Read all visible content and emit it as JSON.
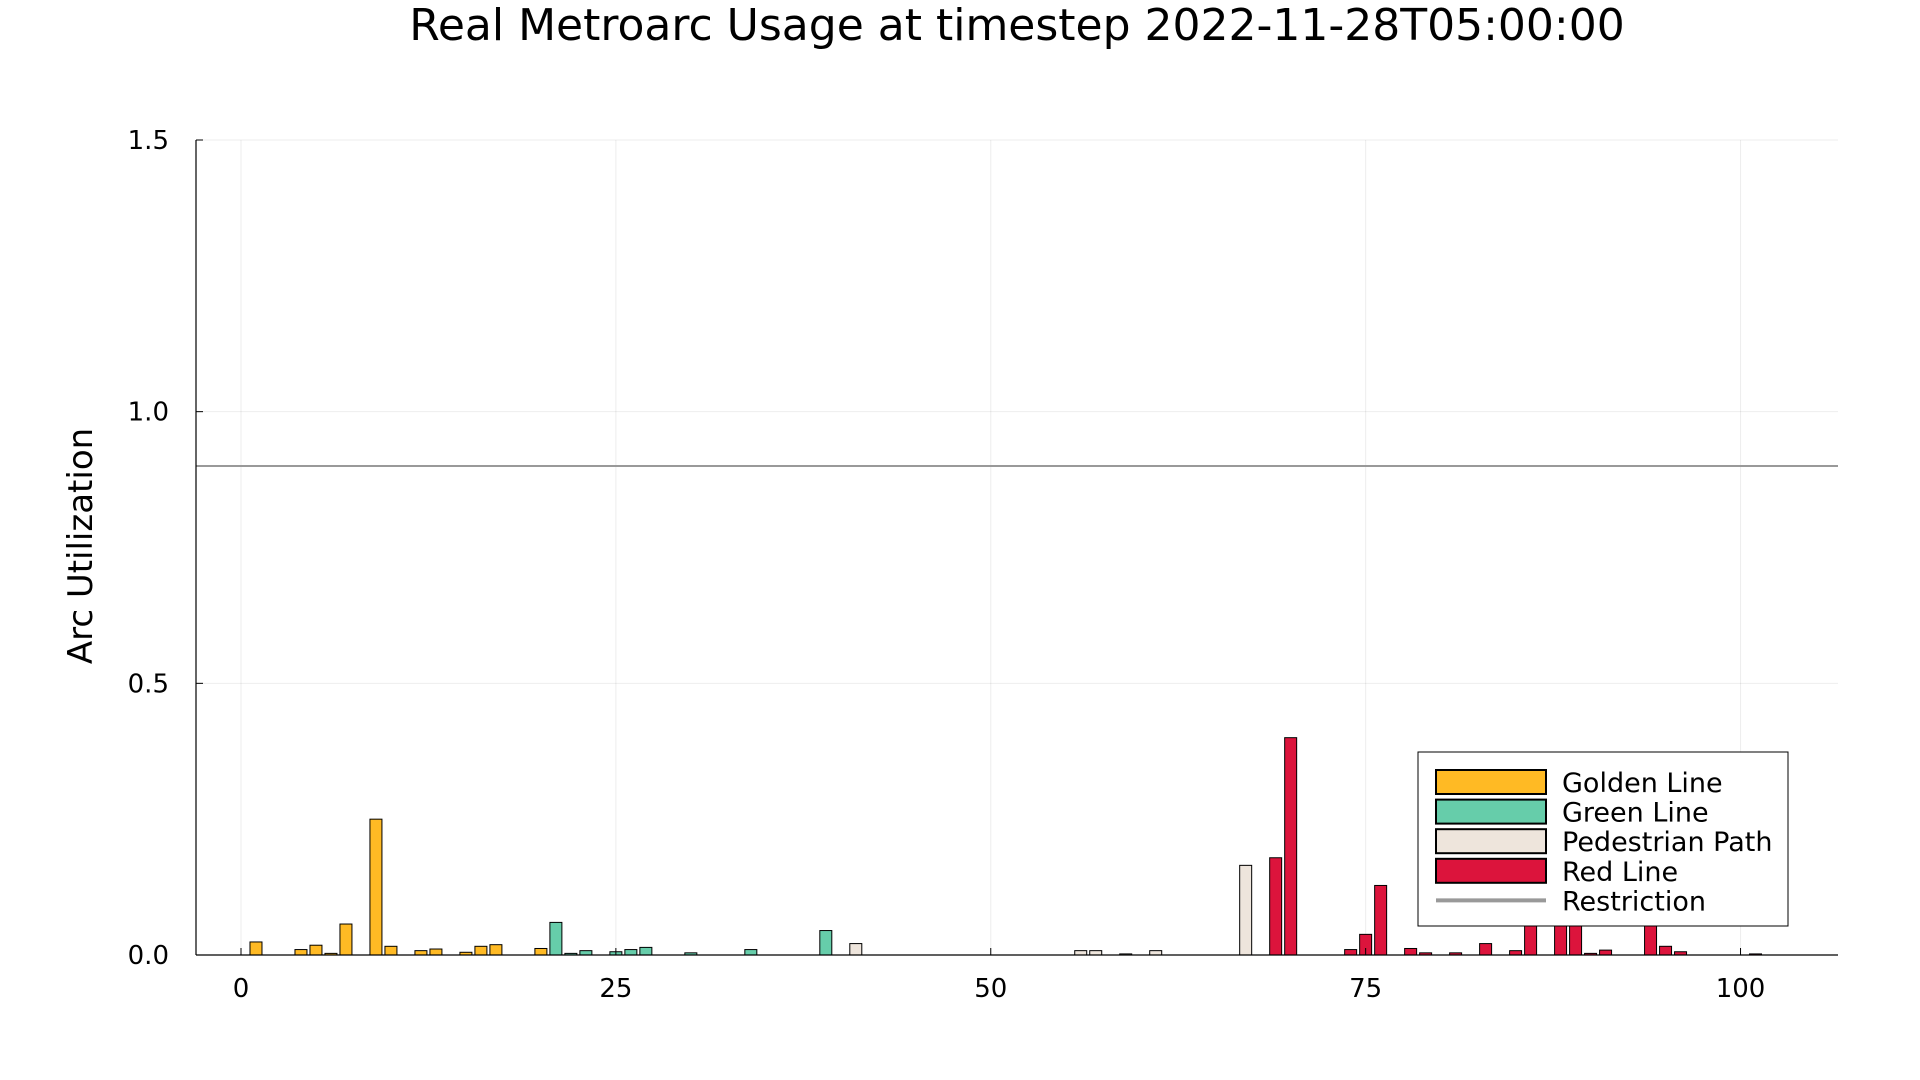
{
  "chart_data": {
    "type": "bar",
    "title": "Real Metroarc Usage at timestep 2022-11-28T05:00:00",
    "xlabel": "",
    "ylabel": "Arc Utilization",
    "xlim": [
      -3,
      106.5
    ],
    "ylim": [
      0,
      1.5
    ],
    "xticks": [
      0,
      25,
      50,
      75,
      100
    ],
    "yticks": [
      0.0,
      0.5,
      1.0,
      1.5
    ],
    "xtick_labels": [
      "0",
      "25",
      "50",
      "75",
      "100"
    ],
    "ytick_labels": [
      "0.0",
      "0.5",
      "1.0",
      "1.5"
    ],
    "grid": true,
    "legend_position": "bottom-right",
    "restriction": {
      "name": "Restriction",
      "value": 0.9,
      "color": "#999999"
    },
    "series": [
      {
        "name": "Golden Line",
        "color": "#FFBA24",
        "x": [
          1,
          4,
          5,
          6,
          7,
          9,
          10,
          12,
          13,
          15,
          16,
          17,
          20
        ],
        "values": [
          0.024,
          0.01,
          0.018,
          0.003,
          0.057,
          0.25,
          0.016,
          0.008,
          0.011,
          0.005,
          0.016,
          0.019,
          0.012
        ]
      },
      {
        "name": "Green Line",
        "color": "#66CDAA",
        "x": [
          21,
          22,
          23,
          25,
          26,
          27,
          30,
          34,
          39
        ],
        "values": [
          0.06,
          0.003,
          0.008,
          0.006,
          0.01,
          0.014,
          0.004,
          0.01,
          0.045
        ]
      },
      {
        "name": "Pedestrian Path",
        "color": "#EEE5DC",
        "x": [
          41,
          56,
          57,
          59,
          61,
          67
        ],
        "values": [
          0.021,
          0.008,
          0.008,
          0.002,
          0.008,
          0.165
        ]
      },
      {
        "name": "Red Line",
        "color": "#DC143C",
        "x": [
          69,
          70,
          74,
          75,
          76,
          78,
          79,
          81,
          83,
          85,
          86,
          88,
          89,
          90,
          91,
          94,
          95,
          96,
          101
        ],
        "values": [
          0.179,
          0.4,
          0.01,
          0.038,
          0.128,
          0.012,
          0.004,
          0.004,
          0.021,
          0.008,
          0.06,
          0.06,
          0.06,
          0.003,
          0.009,
          0.06,
          0.016,
          0.006,
          0.002
        ]
      }
    ]
  }
}
